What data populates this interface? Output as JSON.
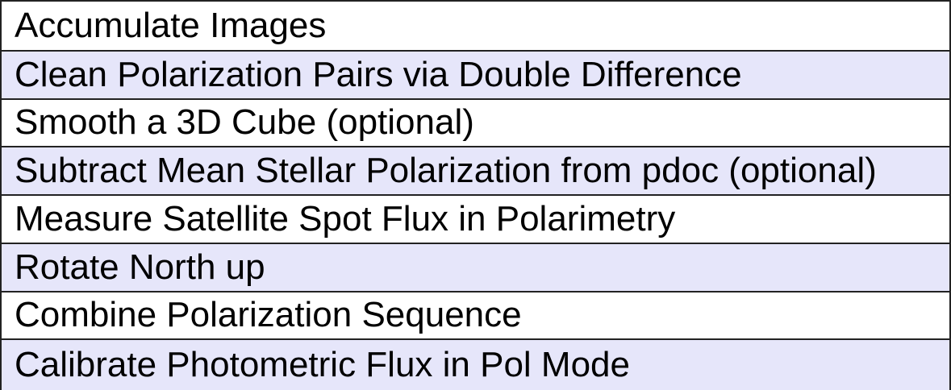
{
  "steps": [
    {
      "label": "Accumulate Images"
    },
    {
      "label": "Clean Polarization Pairs via Double Difference"
    },
    {
      "label": "Smooth a 3D Cube (optional)"
    },
    {
      "label": "Subtract Mean Stellar  Polarization from pdoc (optional)"
    },
    {
      "label": "Measure Satellite Spot Flux in Polarimetry"
    },
    {
      "label": "Rotate North up"
    },
    {
      "label": "Combine Polarization Sequence"
    },
    {
      "label": "Calibrate Photometric Flux in Pol Mode"
    }
  ],
  "colors": {
    "row_plain": "#ffffff",
    "row_shaded": "#e6e6fa",
    "border": "#222222",
    "text": "#000000"
  }
}
